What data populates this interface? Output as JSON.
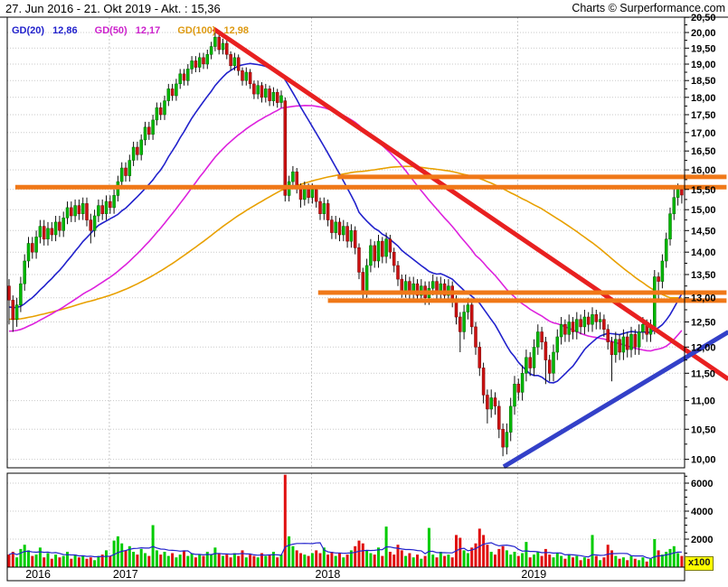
{
  "header": {
    "title": "27. Jun 2016 - 21. Okt 2019 - Akt. : 15,36",
    "brand": "Charts © Surperformance.com"
  },
  "legend": {
    "items": [
      {
        "label": "GD(20)",
        "value": "12,86",
        "color": "#2222cc"
      },
      {
        "label": "GD(50)",
        "value": "12,17",
        "color": "#cc22cc"
      },
      {
        "label": "GD(100)",
        "value": "12,98",
        "color": "#dd9911"
      }
    ]
  },
  "volume_axis": {
    "labels": [
      "6000",
      "4000",
      "2000"
    ],
    "values": [
      6000,
      4000,
      2000
    ],
    "minor_step": 500,
    "unit_label": "x100"
  },
  "price_axis": {
    "start": 20.5,
    "step": 0.5,
    "minor_step": 0.25,
    "labels": [
      "20,50",
      "20,00",
      "19,50",
      "19,00",
      "18,50",
      "18,00",
      "17,50",
      "17,00",
      "16,50",
      "16,00",
      "15,50",
      "15,00",
      "14,50",
      "14,00",
      "13,50",
      "13,00",
      "12,50",
      "12,00",
      "11,50",
      "11,00",
      "10,50",
      "10,00"
    ]
  },
  "years": [
    {
      "label": "2016",
      "week": 3.3,
      "grid": false
    },
    {
      "label": "2017",
      "week": 25.8,
      "grid": true
    },
    {
      "label": "2018",
      "week": 77.8,
      "grid": true
    },
    {
      "label": "2019",
      "week": 130.8,
      "grid": true
    }
  ],
  "chart_data": {
    "type": "candlestick",
    "scale": "log",
    "period_start": "27. Jun 2016",
    "period_end": "21. Okt 2019",
    "last_price": 15.36,
    "ylim": [
      9.85,
      20.6
    ],
    "volume_ylim": [
      0,
      6700
    ],
    "moving_averages": [
      {
        "name": "GD(20)",
        "window": 20,
        "seed": 12.8,
        "color": "#2222cc",
        "current": 12.86
      },
      {
        "name": "GD(50)",
        "window": 50,
        "seed": 12.3,
        "color": "#dd22dd",
        "current": 12.17
      },
      {
        "name": "GD(100)",
        "window": 100,
        "seed": 12.55,
        "color": "#e8a000",
        "current": 12.98
      }
    ],
    "volume_ma_window": 10,
    "levels": [
      {
        "name": "resistance-upper-1",
        "price": 15.82,
        "from_week": 84.5,
        "to_week": 184.5,
        "color": "#f07818"
      },
      {
        "name": "resistance-upper-2",
        "price": 15.56,
        "from_week": 1.6,
        "to_week": 184.5,
        "color": "#f07818"
      },
      {
        "name": "support-lower-1",
        "price": 13.11,
        "from_week": 79.5,
        "to_week": 184.5,
        "color": "#f07818"
      },
      {
        "name": "support-lower-2",
        "price": 12.94,
        "from_week": 82.0,
        "to_week": 184.5,
        "color": "#f07818"
      }
    ],
    "trendlines": [
      {
        "name": "downtrend",
        "color": "#e82020",
        "from": {
          "week": 52.6,
          "price": 20.12
        },
        "to": {
          "week": 185,
          "price": 11.39
        }
      },
      {
        "name": "uptrend",
        "color": "#3340c8",
        "from": {
          "week": 127.2,
          "price": 9.88
        },
        "to": {
          "week": 185,
          "price": 12.3
        }
      }
    ],
    "colors": {
      "up": "#00b800",
      "down": "#cc1111",
      "vol_up": "#00cc00",
      "vol_down": "#e01010",
      "grid": "#c9c9c9",
      "vol_ma": "#2222cc"
    },
    "candles_format": [
      "open",
      "high",
      "low",
      "close",
      "volume_x100"
    ],
    "candles": [
      [
        13.25,
        13.4,
        12.45,
        12.95,
        900
      ],
      [
        12.95,
        13.05,
        12.3,
        12.55,
        1100
      ],
      [
        12.55,
        13.0,
        12.4,
        12.85,
        700
      ],
      [
        12.85,
        13.45,
        12.7,
        13.3,
        1300
      ],
      [
        13.3,
        13.95,
        13.15,
        13.8,
        1600
      ],
      [
        13.8,
        14.35,
        13.65,
        14.2,
        1200
      ],
      [
        14.2,
        14.35,
        13.85,
        14.0,
        800
      ],
      [
        14.0,
        14.5,
        13.85,
        14.35,
        900
      ],
      [
        14.35,
        14.75,
        14.2,
        14.6,
        1400
      ],
      [
        14.6,
        14.75,
        14.15,
        14.3,
        700
      ],
      [
        14.3,
        14.7,
        14.15,
        14.55,
        1000
      ],
      [
        14.55,
        14.7,
        14.25,
        14.4,
        600
      ],
      [
        14.4,
        14.85,
        14.25,
        14.7,
        900
      ],
      [
        14.7,
        14.85,
        14.35,
        14.5,
        700
      ],
      [
        14.5,
        14.95,
        14.35,
        14.8,
        800
      ],
      [
        14.8,
        15.2,
        14.65,
        15.05,
        1100
      ],
      [
        15.05,
        15.2,
        14.7,
        14.85,
        600
      ],
      [
        14.85,
        15.25,
        14.7,
        15.1,
        900
      ],
      [
        15.1,
        15.25,
        14.75,
        14.9,
        700
      ],
      [
        14.9,
        15.3,
        14.75,
        15.15,
        800
      ],
      [
        15.15,
        15.3,
        14.6,
        14.75,
        600
      ],
      [
        14.75,
        14.9,
        14.2,
        14.5,
        700
      ],
      [
        14.5,
        15.0,
        14.35,
        14.85,
        500
      ],
      [
        14.85,
        15.25,
        14.7,
        15.1,
        800
      ],
      [
        15.1,
        15.25,
        14.75,
        14.9,
        900
      ],
      [
        14.9,
        15.35,
        14.75,
        15.2,
        1200
      ],
      [
        15.2,
        15.35,
        14.9,
        15.05,
        800
      ],
      [
        15.05,
        15.5,
        14.9,
        15.35,
        1900
      ],
      [
        15.35,
        15.85,
        15.2,
        15.7,
        2200
      ],
      [
        15.7,
        16.2,
        15.55,
        16.05,
        1700
      ],
      [
        16.05,
        16.2,
        15.7,
        15.85,
        1200
      ],
      [
        15.85,
        16.4,
        15.7,
        16.25,
        1500
      ],
      [
        16.25,
        16.75,
        16.1,
        16.6,
        1100
      ],
      [
        16.6,
        16.75,
        16.25,
        16.4,
        900
      ],
      [
        16.4,
        16.95,
        16.25,
        16.8,
        1300
      ],
      [
        16.8,
        17.3,
        16.65,
        17.15,
        1000
      ],
      [
        17.15,
        17.3,
        16.8,
        16.95,
        800
      ],
      [
        16.95,
        17.5,
        16.8,
        17.35,
        3000
      ],
      [
        17.35,
        17.85,
        17.2,
        17.7,
        1200
      ],
      [
        17.7,
        17.85,
        17.35,
        17.5,
        900
      ],
      [
        17.5,
        18.05,
        17.35,
        17.9,
        1100
      ],
      [
        17.9,
        18.4,
        17.75,
        18.25,
        800
      ],
      [
        18.25,
        18.4,
        17.9,
        18.05,
        1000
      ],
      [
        18.05,
        18.55,
        17.9,
        18.4,
        700
      ],
      [
        18.4,
        18.85,
        18.25,
        18.7,
        900
      ],
      [
        18.7,
        18.85,
        18.35,
        18.5,
        1200
      ],
      [
        18.5,
        19.0,
        18.35,
        18.85,
        800
      ],
      [
        18.85,
        19.25,
        18.7,
        19.1,
        1000
      ],
      [
        19.1,
        19.25,
        18.75,
        18.9,
        700
      ],
      [
        18.9,
        19.35,
        18.75,
        19.2,
        900
      ],
      [
        19.2,
        19.35,
        18.85,
        19.0,
        800
      ],
      [
        19.0,
        19.45,
        18.85,
        19.3,
        1100
      ],
      [
        19.3,
        19.7,
        19.15,
        19.55,
        900
      ],
      [
        19.55,
        20.0,
        19.4,
        19.85,
        1400
      ],
      [
        19.85,
        19.95,
        19.3,
        19.45,
        1000
      ],
      [
        19.45,
        19.8,
        19.3,
        19.65,
        800
      ],
      [
        19.65,
        19.75,
        19.15,
        19.3,
        900
      ],
      [
        19.3,
        19.4,
        18.8,
        18.95,
        700
      ],
      [
        18.95,
        19.35,
        18.8,
        19.2,
        1000
      ],
      [
        19.2,
        19.3,
        18.65,
        18.8,
        800
      ],
      [
        18.8,
        18.9,
        18.35,
        18.5,
        1200
      ],
      [
        18.5,
        18.9,
        18.35,
        18.75,
        700
      ],
      [
        18.75,
        18.85,
        18.25,
        18.4,
        900
      ],
      [
        18.4,
        18.5,
        17.95,
        18.1,
        800
      ],
      [
        18.1,
        18.5,
        17.95,
        18.35,
        700
      ],
      [
        18.35,
        18.45,
        17.85,
        18.0,
        1000
      ],
      [
        18.0,
        18.4,
        17.85,
        18.25,
        800
      ],
      [
        18.25,
        18.35,
        17.75,
        17.9,
        900
      ],
      [
        17.9,
        18.3,
        17.75,
        18.15,
        1100
      ],
      [
        18.15,
        18.25,
        17.7,
        17.85,
        700
      ],
      [
        17.85,
        18.2,
        17.7,
        18.05,
        900
      ],
      [
        17.9,
        18.0,
        15.2,
        15.35,
        6600
      ],
      [
        15.35,
        15.85,
        15.2,
        15.7,
        2200
      ],
      [
        15.7,
        16.1,
        15.55,
        15.95,
        1500
      ],
      [
        15.95,
        16.05,
        15.4,
        15.55,
        1200
      ],
      [
        15.55,
        15.65,
        15.05,
        15.25,
        1000
      ],
      [
        15.25,
        15.7,
        15.1,
        15.55,
        900
      ],
      [
        15.55,
        15.65,
        15.15,
        15.3,
        800
      ],
      [
        15.3,
        15.65,
        15.15,
        15.5,
        1000
      ],
      [
        15.5,
        15.6,
        15.05,
        15.2,
        1200
      ],
      [
        15.2,
        15.3,
        14.75,
        14.9,
        1000
      ],
      [
        14.9,
        15.3,
        14.75,
        15.15,
        1400
      ],
      [
        15.15,
        15.25,
        14.6,
        14.75,
        900
      ],
      [
        14.75,
        14.85,
        14.3,
        14.45,
        1100
      ],
      [
        14.45,
        14.85,
        14.3,
        14.7,
        800
      ],
      [
        14.7,
        14.8,
        14.25,
        14.4,
        1000
      ],
      [
        14.4,
        14.75,
        14.25,
        14.6,
        700
      ],
      [
        14.6,
        14.7,
        14.1,
        14.25,
        900
      ],
      [
        14.25,
        14.65,
        14.1,
        14.5,
        1200
      ],
      [
        14.5,
        14.6,
        13.95,
        14.1,
        1500
      ],
      [
        14.1,
        14.2,
        13.4,
        13.55,
        1900
      ],
      [
        13.55,
        13.65,
        12.9,
        13.15,
        1700
      ],
      [
        13.15,
        13.85,
        13.0,
        13.7,
        1200
      ],
      [
        13.7,
        14.3,
        13.55,
        14.15,
        1000
      ],
      [
        14.15,
        14.25,
        13.65,
        13.8,
        900
      ],
      [
        13.8,
        14.4,
        13.65,
        14.25,
        1400
      ],
      [
        14.25,
        14.35,
        13.75,
        13.9,
        800
      ],
      [
        13.9,
        14.45,
        13.75,
        14.3,
        2900
      ],
      [
        14.3,
        14.4,
        13.85,
        14.0,
        1100
      ],
      [
        14.0,
        14.1,
        13.55,
        13.7,
        900
      ],
      [
        13.7,
        13.8,
        13.25,
        13.4,
        1600
      ],
      [
        13.4,
        13.5,
        13.0,
        13.15,
        1200
      ],
      [
        13.15,
        13.5,
        13.0,
        13.35,
        800
      ],
      [
        13.35,
        13.45,
        12.95,
        13.1,
        1000
      ],
      [
        13.1,
        13.45,
        12.95,
        13.3,
        700
      ],
      [
        13.3,
        13.4,
        12.9,
        13.05,
        900
      ],
      [
        13.05,
        13.4,
        12.9,
        13.25,
        600
      ],
      [
        13.25,
        13.35,
        12.85,
        13.0,
        800
      ],
      [
        13.0,
        13.35,
        12.85,
        13.2,
        2800
      ],
      [
        13.2,
        13.5,
        13.05,
        13.35,
        900
      ],
      [
        13.35,
        13.45,
        12.95,
        13.1,
        700
      ],
      [
        13.1,
        13.45,
        12.95,
        13.3,
        1100
      ],
      [
        13.3,
        13.4,
        12.9,
        13.05,
        800
      ],
      [
        13.05,
        13.4,
        12.9,
        13.25,
        900
      ],
      [
        13.25,
        13.35,
        12.8,
        12.95,
        700
      ],
      [
        12.95,
        13.05,
        12.45,
        12.6,
        2300
      ],
      [
        12.6,
        12.7,
        11.9,
        12.3,
        2100
      ],
      [
        12.3,
        12.85,
        12.15,
        12.7,
        1200
      ],
      [
        12.7,
        13.0,
        12.55,
        12.85,
        1000
      ],
      [
        12.85,
        12.95,
        12.25,
        12.4,
        1400
      ],
      [
        12.4,
        12.5,
        11.85,
        12.0,
        1700
      ],
      [
        12.0,
        12.1,
        11.45,
        11.6,
        2750
      ],
      [
        11.6,
        11.7,
        10.95,
        11.1,
        2300
      ],
      [
        11.1,
        11.2,
        10.6,
        10.85,
        1600
      ],
      [
        10.85,
        11.2,
        10.7,
        11.05,
        1100
      ],
      [
        11.05,
        11.15,
        10.75,
        10.9,
        900
      ],
      [
        10.9,
        11.0,
        10.35,
        10.5,
        1300
      ],
      [
        10.5,
        10.6,
        10.05,
        10.2,
        1500
      ],
      [
        10.2,
        10.6,
        10.08,
        10.45,
        1200
      ],
      [
        10.45,
        11.05,
        10.3,
        10.9,
        900
      ],
      [
        10.9,
        11.45,
        10.75,
        11.3,
        1100
      ],
      [
        11.3,
        11.4,
        11.0,
        11.15,
        800
      ],
      [
        11.15,
        11.65,
        11.0,
        11.5,
        1000
      ],
      [
        11.5,
        11.95,
        11.35,
        11.8,
        1800
      ],
      [
        11.8,
        11.9,
        11.45,
        11.6,
        700
      ],
      [
        11.6,
        12.15,
        11.45,
        12.0,
        900
      ],
      [
        12.0,
        12.45,
        11.85,
        12.3,
        1100
      ],
      [
        12.3,
        12.4,
        11.95,
        12.1,
        800
      ],
      [
        12.1,
        12.2,
        11.3,
        11.75,
        1300
      ],
      [
        11.75,
        11.85,
        11.35,
        11.5,
        900
      ],
      [
        11.5,
        12.05,
        11.35,
        11.9,
        700
      ],
      [
        11.9,
        12.35,
        11.75,
        12.2,
        1000
      ],
      [
        12.2,
        12.6,
        12.05,
        12.45,
        800
      ],
      [
        12.45,
        12.55,
        12.1,
        12.25,
        600
      ],
      [
        12.25,
        12.65,
        12.1,
        12.5,
        900
      ],
      [
        12.5,
        12.6,
        12.15,
        12.3,
        700
      ],
      [
        12.3,
        12.7,
        12.15,
        12.55,
        800
      ],
      [
        12.55,
        12.65,
        12.25,
        12.4,
        500
      ],
      [
        12.4,
        12.75,
        12.25,
        12.6,
        700
      ],
      [
        12.6,
        12.7,
        12.3,
        12.45,
        600
      ],
      [
        12.45,
        12.8,
        12.3,
        12.65,
        2300
      ],
      [
        12.65,
        12.75,
        12.35,
        12.5,
        800
      ],
      [
        12.5,
        12.7,
        12.35,
        12.55,
        500
      ],
      [
        12.55,
        12.65,
        12.2,
        12.35,
        700
      ],
      [
        12.35,
        12.45,
        11.95,
        12.1,
        1600
      ],
      [
        12.1,
        12.2,
        11.35,
        11.85,
        1200
      ],
      [
        11.85,
        12.3,
        11.7,
        12.15,
        800
      ],
      [
        12.15,
        12.25,
        11.75,
        11.9,
        600
      ],
      [
        11.9,
        12.35,
        11.75,
        12.2,
        700
      ],
      [
        12.2,
        12.3,
        11.8,
        11.95,
        500
      ],
      [
        11.95,
        12.4,
        11.8,
        12.25,
        800
      ],
      [
        12.25,
        12.35,
        11.85,
        12.0,
        600
      ],
      [
        12.0,
        12.45,
        11.85,
        12.3,
        500
      ],
      [
        12.3,
        12.6,
        12.15,
        12.45,
        700
      ],
      [
        12.45,
        12.55,
        12.1,
        12.25,
        400
      ],
      [
        12.25,
        12.55,
        12.1,
        12.4,
        600
      ],
      [
        12.4,
        13.6,
        12.25,
        13.45,
        2000
      ],
      [
        13.45,
        13.55,
        12.95,
        13.35,
        1200
      ],
      [
        13.35,
        13.95,
        13.2,
        13.8,
        900
      ],
      [
        13.8,
        14.45,
        13.65,
        14.3,
        1100
      ],
      [
        14.3,
        15.05,
        14.15,
        14.9,
        1300
      ],
      [
        14.9,
        15.6,
        14.75,
        15.3,
        1500
      ],
      [
        15.3,
        15.65,
        15.1,
        15.5,
        1000
      ],
      [
        15.5,
        15.55,
        15.15,
        15.36,
        800
      ]
    ]
  }
}
